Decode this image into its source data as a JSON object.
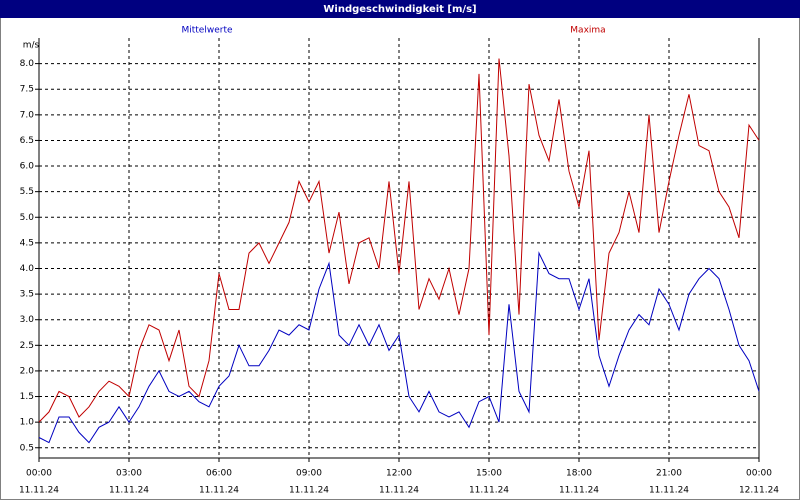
{
  "chart_data": {
    "type": "line",
    "title": "Windgeschwindigkeit [m/s]",
    "y_label": "m/s",
    "x": [
      0,
      20,
      40,
      60,
      80,
      100,
      120,
      140,
      160,
      180,
      200,
      220,
      240,
      260,
      280,
      300,
      320,
      340,
      360,
      380,
      400,
      420,
      440,
      460,
      480,
      500,
      520,
      540,
      560,
      580,
      600,
      620,
      640,
      660,
      680,
      700,
      720,
      740,
      760,
      780,
      800,
      820,
      840,
      860,
      880,
      900,
      920,
      940,
      960,
      980,
      1000,
      1020,
      1040,
      1060,
      1080,
      1100,
      1120,
      1140,
      1160,
      1180,
      1200,
      1220,
      1240,
      1260,
      1280,
      1300,
      1320,
      1340,
      1360,
      1380,
      1400,
      1420,
      1440
    ],
    "series": [
      {
        "name": "Mittelwerte",
        "color": "#0000c0",
        "values": [
          0.7,
          0.6,
          1.1,
          1.1,
          0.8,
          0.6,
          0.9,
          1.0,
          1.3,
          1.0,
          1.3,
          1.7,
          2.0,
          1.6,
          1.5,
          1.6,
          1.4,
          1.3,
          1.7,
          1.9,
          2.5,
          2.1,
          2.1,
          2.4,
          2.8,
          2.7,
          2.9,
          2.8,
          3.6,
          4.1,
          2.7,
          2.5,
          2.9,
          2.5,
          2.9,
          2.4,
          2.7,
          1.5,
          1.2,
          1.6,
          1.2,
          1.1,
          1.2,
          0.9,
          1.4,
          1.5,
          1.0,
          3.3,
          1.6,
          1.2,
          4.3,
          3.9,
          3.8,
          3.8,
          3.2,
          3.8,
          2.3,
          1.7,
          2.3,
          2.8,
          3.1,
          2.9,
          3.6,
          3.3,
          2.8,
          3.5,
          3.8,
          4.0,
          3.8,
          3.2,
          2.5,
          2.2,
          1.6
        ]
      },
      {
        "name": "Maxima",
        "color": "#c00000",
        "values": [
          1.0,
          1.2,
          1.6,
          1.5,
          1.1,
          1.3,
          1.6,
          1.8,
          1.7,
          1.5,
          2.4,
          2.9,
          2.8,
          2.2,
          2.8,
          1.7,
          1.5,
          2.2,
          3.9,
          3.2,
          3.2,
          4.3,
          4.5,
          4.1,
          4.5,
          4.9,
          5.7,
          5.3,
          5.7,
          4.3,
          5.1,
          3.7,
          4.5,
          4.6,
          4.0,
          5.7,
          3.9,
          5.7,
          3.2,
          3.8,
          3.4,
          4.0,
          3.1,
          4.0,
          7.8,
          2.7,
          8.1,
          6.2,
          3.1,
          7.6,
          6.6,
          6.1,
          7.3,
          5.9,
          5.2,
          6.3,
          2.6,
          4.3,
          4.7,
          5.5,
          4.7,
          7.0,
          4.7,
          5.7,
          6.6,
          7.4,
          6.4,
          6.3,
          5.5,
          5.2,
          4.6,
          6.8,
          6.5
        ]
      }
    ],
    "xlim": [
      0,
      1440
    ],
    "xticks": [
      {
        "value": 0,
        "label": "00:00"
      },
      {
        "value": 180,
        "label": "03:00"
      },
      {
        "value": 360,
        "label": "06:00"
      },
      {
        "value": 540,
        "label": "09:00"
      },
      {
        "value": 720,
        "label": "12:00"
      },
      {
        "value": 900,
        "label": "15:00"
      },
      {
        "value": 1080,
        "label": "18:00"
      },
      {
        "value": 1260,
        "label": "21:00"
      },
      {
        "value": 1440,
        "label": "00:00"
      }
    ],
    "xtick_dates": [
      "11.11.24",
      "11.11.24",
      "11.11.24",
      "11.11.24",
      "11.11.24",
      "11.11.24",
      "11.11.24",
      "11.11.24",
      "12.11.24"
    ],
    "ylim": [
      0.3,
      8.5
    ],
    "yticks": [
      0.5,
      {
        "value": 1,
        "label": "1.0"
      },
      1.5,
      {
        "value": 2,
        "label": "2.0"
      },
      2.5,
      {
        "value": 3,
        "label": "3.0"
      },
      3.5,
      {
        "value": 4,
        "label": "4.0"
      },
      4.5,
      {
        "value": 5,
        "label": "5.0"
      },
      5.5,
      {
        "value": 6,
        "label": "6.0"
      },
      6.5,
      {
        "value": 7,
        "label": "7.0"
      },
      7.5,
      {
        "value": 8,
        "label": "8.0"
      }
    ],
    "grid": true
  }
}
